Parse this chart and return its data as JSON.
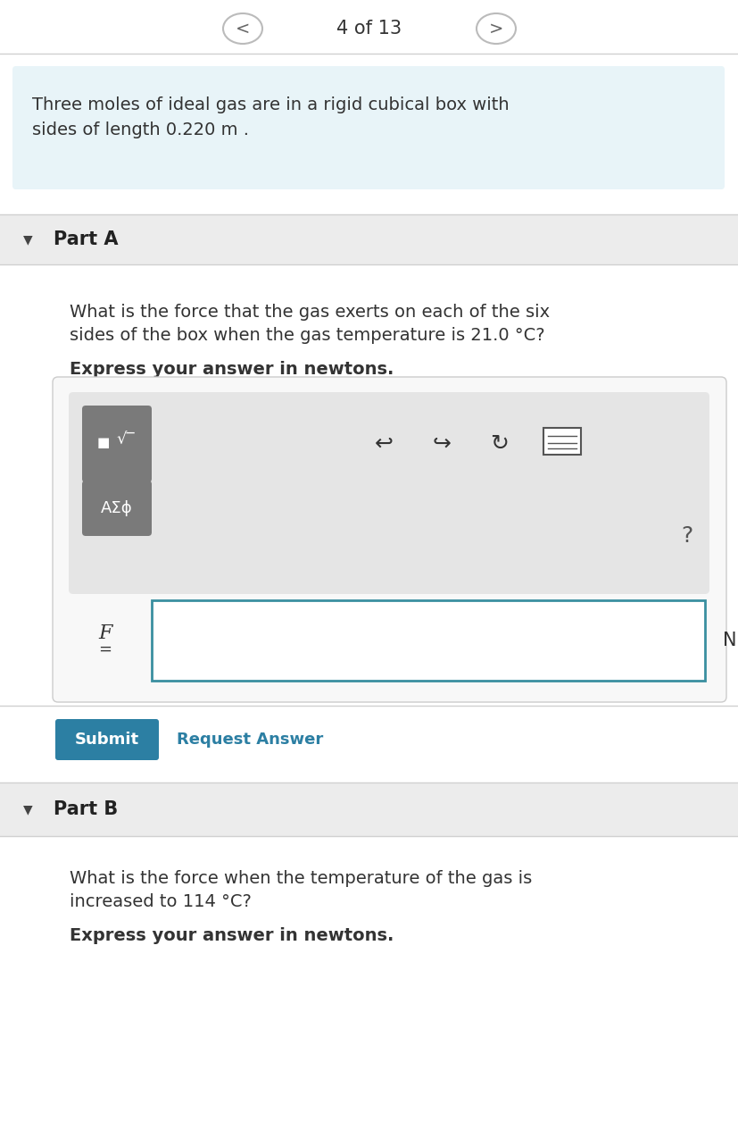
{
  "bg_color": "#ffffff",
  "nav_text": "4 of 13",
  "nav_circle_color": "#bbbbbb",
  "nav_arrow_color": "#666666",
  "nav_text_color": "#333333",
  "problem_bg": "#e8f4f8",
  "problem_text_line1": "Three moles of ideal gas are in a rigid cubical box with",
  "problem_text_line2": "sides of length 0.220 m .",
  "part_header_bg": "#ececec",
  "part_a_header": "Part A",
  "part_a_q1": "What is the force that the gas exerts on each of the six",
  "part_a_q2": "sides of the box when the gas temperature is 21.0 °C?",
  "part_a_express": "Express your answer in newtons.",
  "toolbar_outer_bg": "#f7f7f7",
  "toolbar_outer_border": "#cccccc",
  "toolbar_inner_bg": "#e5e5e5",
  "toolbar_inner_border": "#cccccc",
  "btn_bg": "#7a7a7a",
  "btn_text1a": "■",
  "btn_text1b": "√□",
  "btn_text2": "AΣϕ",
  "icon_undo": "↩",
  "icon_redo": "↪",
  "icon_refresh": "↻",
  "icon_keyboard": "⌨",
  "question_mark": "?",
  "input_field_border": "#3a8fa0",
  "input_label_f": "F",
  "input_label_eq": "=",
  "input_unit": "N",
  "submit_bg": "#2c7fa3",
  "submit_text": "Submit",
  "request_text": "Request Answer",
  "request_color": "#2c7fa3",
  "separator_color": "#d0d0d0",
  "part_b_header": "Part B",
  "part_b_q1": "What is the force when the temperature of the gas is",
  "part_b_q2": "increased to 114 °C?",
  "part_b_express": "Express your answer in newtons.",
  "text_color": "#333333",
  "font_size_nav": 15,
  "font_size_problem": 14,
  "font_size_part": 15,
  "font_size_question": 14,
  "font_size_express": 14,
  "font_size_btn": 13,
  "font_size_icons": 18,
  "font_size_qmark": 18,
  "font_size_F": 16,
  "font_size_N": 15,
  "font_size_submit": 13
}
